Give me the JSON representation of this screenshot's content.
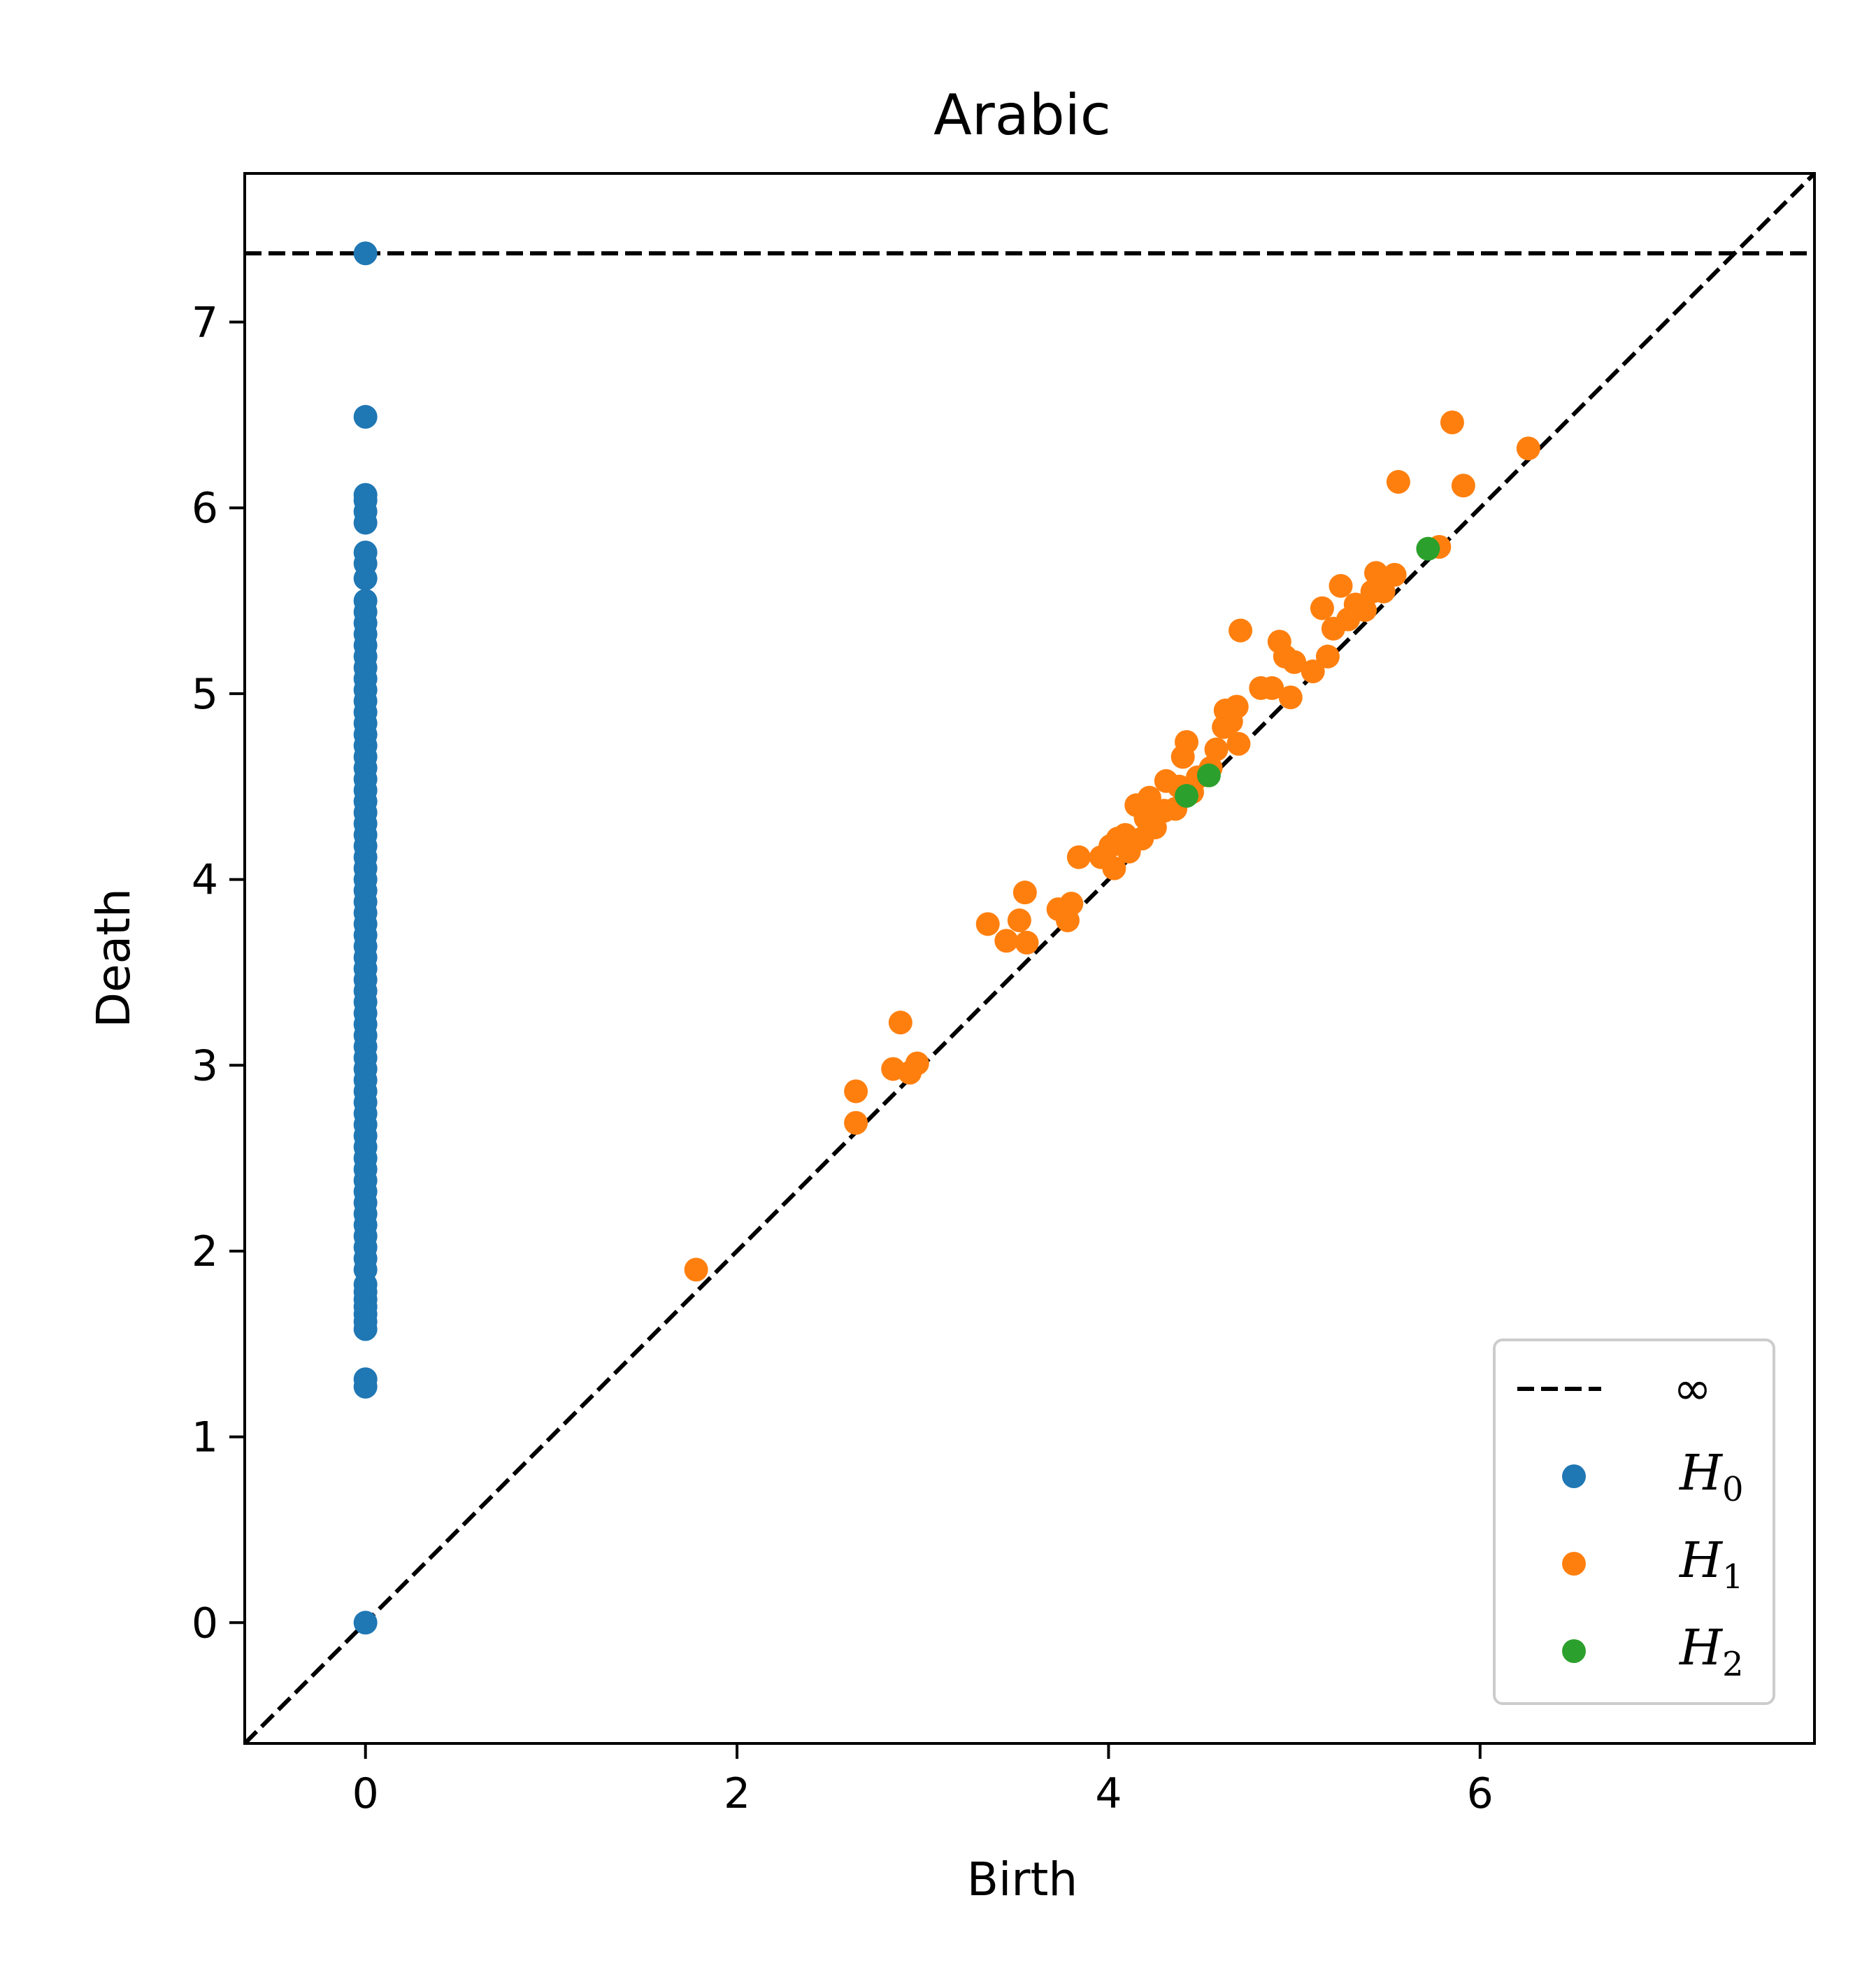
{
  "chart_data": {
    "type": "scatter",
    "title": "Arabic",
    "xlabel": "Birth",
    "ylabel": "Death",
    "xlim": [
      -0.65,
      7.8
    ],
    "ylim": [
      -0.65,
      7.8
    ],
    "xticks": [
      0,
      2,
      4,
      6
    ],
    "yticks": [
      0,
      1,
      2,
      3,
      4,
      5,
      6,
      7
    ],
    "grid": false,
    "legend_position": "lower-right",
    "infinity_line": {
      "label": "∞",
      "y": 7.37
    },
    "diagonal": true,
    "series": [
      {
        "name": "H",
        "subscript": "0",
        "color": "#1f77b4",
        "points": [
          [
            0,
            0
          ],
          [
            0,
            1.27
          ],
          [
            0,
            1.31
          ],
          [
            0,
            1.58
          ],
          [
            0,
            1.62
          ],
          [
            0,
            1.66
          ],
          [
            0,
            1.7
          ],
          [
            0,
            1.74
          ],
          [
            0,
            1.78
          ],
          [
            0,
            1.82
          ],
          [
            0,
            1.9
          ],
          [
            0,
            1.96
          ],
          [
            0,
            2.02
          ],
          [
            0,
            2.08
          ],
          [
            0,
            2.14
          ],
          [
            0,
            2.2
          ],
          [
            0,
            2.26
          ],
          [
            0,
            2.32
          ],
          [
            0,
            2.38
          ],
          [
            0,
            2.44
          ],
          [
            0,
            2.5
          ],
          [
            0,
            2.56
          ],
          [
            0,
            2.62
          ],
          [
            0,
            2.68
          ],
          [
            0,
            2.74
          ],
          [
            0,
            2.8
          ],
          [
            0,
            2.86
          ],
          [
            0,
            2.92
          ],
          [
            0,
            2.98
          ],
          [
            0,
            3.04
          ],
          [
            0,
            3.1
          ],
          [
            0,
            3.16
          ],
          [
            0,
            3.22
          ],
          [
            0,
            3.28
          ],
          [
            0,
            3.34
          ],
          [
            0,
            3.4
          ],
          [
            0,
            3.46
          ],
          [
            0,
            3.52
          ],
          [
            0,
            3.58
          ],
          [
            0,
            3.64
          ],
          [
            0,
            3.7
          ],
          [
            0,
            3.76
          ],
          [
            0,
            3.82
          ],
          [
            0,
            3.88
          ],
          [
            0,
            3.94
          ],
          [
            0,
            4.0
          ],
          [
            0,
            4.06
          ],
          [
            0,
            4.12
          ],
          [
            0,
            4.18
          ],
          [
            0,
            4.24
          ],
          [
            0,
            4.3
          ],
          [
            0,
            4.36
          ],
          [
            0,
            4.42
          ],
          [
            0,
            4.48
          ],
          [
            0,
            4.54
          ],
          [
            0,
            4.6
          ],
          [
            0,
            4.66
          ],
          [
            0,
            4.72
          ],
          [
            0,
            4.78
          ],
          [
            0,
            4.84
          ],
          [
            0,
            4.9
          ],
          [
            0,
            4.96
          ],
          [
            0,
            5.02
          ],
          [
            0,
            5.08
          ],
          [
            0,
            5.14
          ],
          [
            0,
            5.2
          ],
          [
            0,
            5.26
          ],
          [
            0,
            5.32
          ],
          [
            0,
            5.38
          ],
          [
            0,
            5.44
          ],
          [
            0,
            5.5
          ],
          [
            0,
            5.62
          ],
          [
            0,
            5.7
          ],
          [
            0,
            5.76
          ],
          [
            0,
            5.92
          ],
          [
            0,
            5.98
          ],
          [
            0,
            6.04
          ],
          [
            0,
            6.07
          ],
          [
            0,
            6.49
          ],
          [
            0,
            7.37
          ]
        ]
      },
      {
        "name": "H",
        "subscript": "1",
        "color": "#ff7f0e",
        "points": [
          [
            1.78,
            1.9
          ],
          [
            2.64,
            2.69
          ],
          [
            2.64,
            2.86
          ],
          [
            2.84,
            2.98
          ],
          [
            2.88,
            3.23
          ],
          [
            2.93,
            2.96
          ],
          [
            2.97,
            3.01
          ],
          [
            3.35,
            3.76
          ],
          [
            3.45,
            3.67
          ],
          [
            3.52,
            3.78
          ],
          [
            3.55,
            3.93
          ],
          [
            3.56,
            3.66
          ],
          [
            3.73,
            3.84
          ],
          [
            3.78,
            3.78
          ],
          [
            3.8,
            3.87
          ],
          [
            3.84,
            4.12
          ],
          [
            3.96,
            4.12
          ],
          [
            4.01,
            4.18
          ],
          [
            4.03,
            4.06
          ],
          [
            4.05,
            4.22
          ],
          [
            4.09,
            4.24
          ],
          [
            4.11,
            4.15
          ],
          [
            4.15,
            4.4
          ],
          [
            4.18,
            4.22
          ],
          [
            4.2,
            4.33
          ],
          [
            4.22,
            4.44
          ],
          [
            4.25,
            4.28
          ],
          [
            4.3,
            4.37
          ],
          [
            4.31,
            4.53
          ],
          [
            4.36,
            4.38
          ],
          [
            4.38,
            4.5
          ],
          [
            4.4,
            4.66
          ],
          [
            4.42,
            4.74
          ],
          [
            4.45,
            4.47
          ],
          [
            4.48,
            4.55
          ],
          [
            4.55,
            4.6
          ],
          [
            4.58,
            4.7
          ],
          [
            4.62,
            4.82
          ],
          [
            4.63,
            4.91
          ],
          [
            4.66,
            4.85
          ],
          [
            4.69,
            4.93
          ],
          [
            4.7,
            4.73
          ],
          [
            4.71,
            5.34
          ],
          [
            4.82,
            5.03
          ],
          [
            4.88,
            5.03
          ],
          [
            4.92,
            5.28
          ],
          [
            4.95,
            5.2
          ],
          [
            4.98,
            4.98
          ],
          [
            5.0,
            5.17
          ],
          [
            5.1,
            5.12
          ],
          [
            5.15,
            5.46
          ],
          [
            5.18,
            5.2
          ],
          [
            5.21,
            5.35
          ],
          [
            5.25,
            5.58
          ],
          [
            5.29,
            5.4
          ],
          [
            5.33,
            5.48
          ],
          [
            5.38,
            5.45
          ],
          [
            5.42,
            5.55
          ],
          [
            5.44,
            5.65
          ],
          [
            5.48,
            5.55
          ],
          [
            5.54,
            5.64
          ],
          [
            5.56,
            6.14
          ],
          [
            5.78,
            5.79
          ],
          [
            5.85,
            6.46
          ],
          [
            5.91,
            6.12
          ],
          [
            6.26,
            6.32
          ]
        ]
      },
      {
        "name": "H",
        "subscript": "2",
        "color": "#2ca02c",
        "points": [
          [
            4.42,
            4.45
          ],
          [
            4.54,
            4.56
          ],
          [
            5.72,
            5.78
          ]
        ]
      }
    ]
  }
}
